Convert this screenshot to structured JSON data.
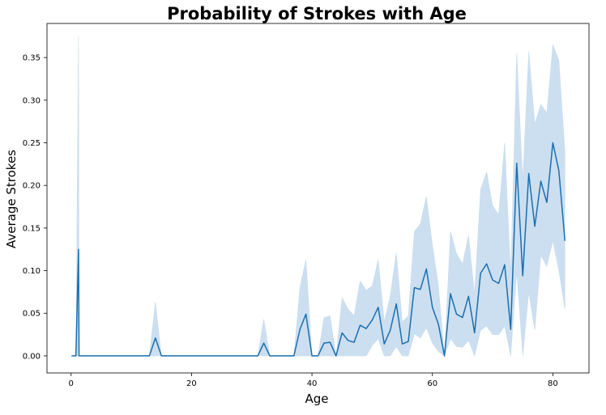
{
  "chart_data": {
    "type": "line",
    "title": "Probability of Strokes with Age",
    "xlabel": "Age",
    "ylabel": "Average Strokes",
    "xlim": [
      -4,
      86
    ],
    "ylim": [
      -0.02,
      0.39
    ],
    "xticks": [
      0,
      20,
      40,
      60,
      80
    ],
    "yticks": [
      0.0,
      0.05,
      0.1,
      0.15,
      0.2,
      0.25,
      0.3,
      0.35
    ],
    "ytick_labels": [
      "0.00",
      "0.05",
      "0.10",
      "0.15",
      "0.20",
      "0.25",
      "0.30",
      "0.35"
    ],
    "grid": false,
    "legend": "none",
    "colors": {
      "line": "#1a6faf",
      "band": "#c6dcee"
    },
    "series": [
      {
        "x": [
          0.08,
          0.8,
          1.24,
          1.32,
          2,
          3,
          5,
          8,
          10,
          13,
          14,
          15,
          17,
          20,
          25,
          30,
          31,
          32,
          33,
          34,
          35,
          36,
          37,
          38,
          39,
          40,
          41,
          42,
          43,
          44,
          45,
          46,
          47,
          48,
          49,
          50,
          51,
          52,
          53,
          54,
          55,
          56,
          57,
          58,
          59,
          60,
          61,
          62,
          63,
          64,
          65,
          66,
          67,
          68,
          69,
          70,
          71,
          72,
          73,
          74,
          75,
          76,
          77,
          78,
          79,
          80,
          81,
          82
        ],
        "y": [
          0,
          0,
          0.125,
          0,
          0,
          0,
          0,
          0,
          0,
          0,
          0.021,
          0,
          0,
          0,
          0,
          0,
          0,
          0.015,
          0,
          0,
          0,
          0,
          0,
          0.031,
          0.049,
          0,
          0,
          0.015,
          0.016,
          0,
          0.027,
          0.018,
          0.016,
          0.036,
          0.032,
          0.042,
          0.057,
          0.014,
          0.03,
          0.061,
          0.014,
          0.017,
          0.08,
          0.078,
          0.102,
          0.057,
          0.037,
          0,
          0.073,
          0.049,
          0.045,
          0.07,
          0.027,
          0.097,
          0.108,
          0.089,
          0.085,
          0.107,
          0.031,
          0.226,
          0.094,
          0.214,
          0.152,
          0.205,
          0.18,
          0.25,
          0.217,
          0.135
        ],
        "lower": [
          0,
          0,
          0,
          0,
          0,
          0,
          0,
          0,
          0,
          0,
          0,
          0,
          0,
          0,
          0,
          0,
          0,
          0,
          0,
          0,
          0,
          0,
          0,
          0,
          0,
          0,
          0,
          0,
          0,
          0,
          0,
          0,
          0,
          0,
          0,
          0.012,
          0.02,
          0,
          0,
          0.011,
          0,
          0,
          0.026,
          0.021,
          0.033,
          0.015,
          0.005,
          0,
          0.02,
          0.011,
          0.01,
          0.018,
          0,
          0.03,
          0.035,
          0.025,
          0.025,
          0.035,
          0,
          0.1,
          0,
          0.075,
          0.03,
          0.118,
          0.105,
          0.135,
          0.1,
          0.055
        ],
        "upper": [
          0,
          0,
          0.375,
          0,
          0,
          0,
          0,
          0,
          0,
          0,
          0.063,
          0,
          0,
          0,
          0,
          0,
          0,
          0.043,
          0,
          0,
          0,
          0,
          0,
          0.08,
          0.113,
          0,
          0,
          0.045,
          0.047,
          0,
          0.068,
          0.055,
          0.047,
          0.088,
          0.077,
          0.082,
          0.113,
          0.04,
          0.07,
          0.121,
          0.04,
          0.047,
          0.146,
          0.155,
          0.187,
          0.13,
          0.082,
          0,
          0.146,
          0.12,
          0.108,
          0.141,
          0.072,
          0.195,
          0.216,
          0.176,
          0.166,
          0.25,
          0.095,
          0.355,
          0.205,
          0.357,
          0.272,
          0.295,
          0.285,
          0.365,
          0.347,
          0.24
        ]
      }
    ]
  }
}
